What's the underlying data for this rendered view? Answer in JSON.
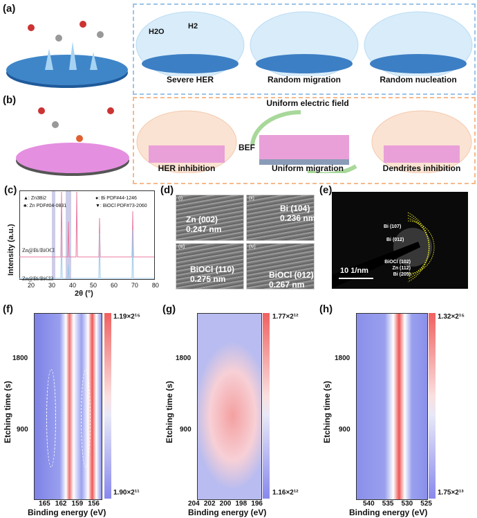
{
  "panels": {
    "a": {
      "label": "(a)",
      "h2o": "H2O",
      "h2": "H2",
      "captions": [
        "Severe HER",
        "Random migration",
        "Random nucleation"
      ]
    },
    "b": {
      "label": "(b)",
      "captions": [
        "HER inhibition",
        "Uniform migration",
        "Dendrites inhibition"
      ],
      "field": "Uniform electric field",
      "bef": "BEF"
    },
    "c": {
      "label": "(c)"
    },
    "d": {
      "label": "(d)",
      "images": [
        {
          "n": "(i)",
          "text": "Zn (002)\n0.247 nm"
        },
        {
          "n": "(ii)",
          "text": "Bi (104)\n0.236 nm"
        },
        {
          "n": "(iii)",
          "text": "BiOCl (110)\n0.275 nm"
        },
        {
          "n": "(iv)",
          "text": "BiOCl (012)\n0.267 nm"
        }
      ]
    },
    "e": {
      "label": "(e)",
      "rings": [
        "Bi (107)",
        "Bi (012)",
        "BiOCl (102)",
        "Zn (112)",
        "Bi (205)"
      ],
      "scale": "10 1/nm"
    },
    "f": {
      "label": "(f)"
    },
    "g": {
      "label": "(g)"
    },
    "h": {
      "label": "(h)"
    }
  },
  "chart_data": [
    {
      "type": "line",
      "panel": "c",
      "xlabel": "2θ (°)",
      "ylabel": "Intensity (a.u.)",
      "xlim": [
        15,
        80
      ],
      "xticks": [
        "20",
        "30",
        "40",
        "50",
        "60",
        "70",
        "80"
      ],
      "legend": [
        "▲: Zn3Bi2",
        "♣: Zn PDF#04-0831",
        "●: Bi PDF#44-1246",
        "▼: BiOCl PDF#73-2060"
      ],
      "series": [
        {
          "name": "Zn@Bi/BiOCl",
          "peaks": [
            27.2,
            36.3,
            39.0,
            43.2,
            54.3,
            70.1
          ]
        },
        {
          "name": "Zn@Bi/BiCl3",
          "peaks": [
            36.3,
            39.0,
            43.2,
            54.3,
            70.1
          ]
        }
      ]
    },
    {
      "type": "heatmap",
      "panel": "f",
      "xlabel": "Binding energy (eV)",
      "ylabel": "Etching time (s)",
      "xticks": [
        "165",
        "162",
        "159",
        "156"
      ],
      "yticks": [
        "1800",
        "900"
      ],
      "colorbar": [
        "1.19×2¹⁵",
        "1.90×2¹¹"
      ],
      "peaks_eV": [
        161.8,
        156.5
      ]
    },
    {
      "type": "heatmap",
      "panel": "g",
      "xlabel": "Binding energy (eV)",
      "ylabel": "Etching time (s)",
      "xticks": [
        "204",
        "202",
        "200",
        "198",
        "196"
      ],
      "yticks": [
        "1800",
        "900"
      ],
      "colorbar": [
        "1.77×2¹²",
        "1.16×2¹²"
      ]
    },
    {
      "type": "heatmap",
      "panel": "h",
      "xlabel": "Binding energy (eV)",
      "ylabel": "Etching time (s)",
      "xticks": [
        "540",
        "535",
        "530",
        "525"
      ],
      "yticks": [
        "1800",
        "900"
      ],
      "colorbar": [
        "1.32×2¹⁵",
        "1.75×2¹³"
      ],
      "peaks_eV": [
        530.5
      ]
    }
  ]
}
